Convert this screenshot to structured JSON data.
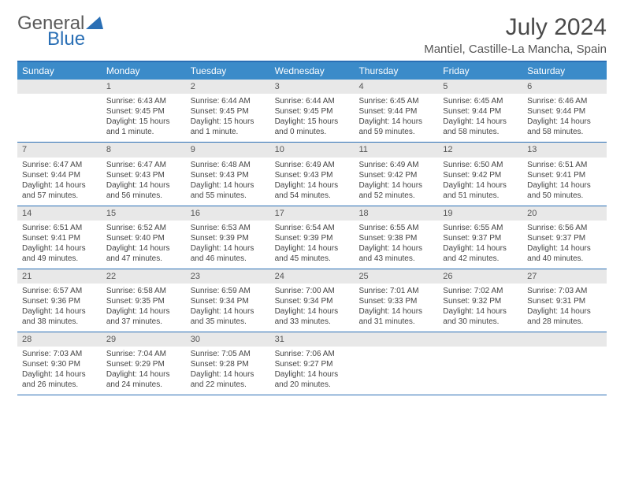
{
  "logo": {
    "word1": "General",
    "word2": "Blue",
    "tri_color": "#2a6fb5"
  },
  "title": "July 2024",
  "location": "Mantiel, Castille-La Mancha, Spain",
  "colors": {
    "header_bar": "#3b8bc9",
    "rule": "#2a6fb5",
    "daynum_bg": "#e8e8e8"
  },
  "dow": [
    "Sunday",
    "Monday",
    "Tuesday",
    "Wednesday",
    "Thursday",
    "Friday",
    "Saturday"
  ],
  "weeks": [
    [
      {
        "n": "",
        "sr": "",
        "ss": "",
        "d1": "",
        "d2": ""
      },
      {
        "n": "1",
        "sr": "Sunrise: 6:43 AM",
        "ss": "Sunset: 9:45 PM",
        "d1": "Daylight: 15 hours",
        "d2": "and 1 minute."
      },
      {
        "n": "2",
        "sr": "Sunrise: 6:44 AM",
        "ss": "Sunset: 9:45 PM",
        "d1": "Daylight: 15 hours",
        "d2": "and 1 minute."
      },
      {
        "n": "3",
        "sr": "Sunrise: 6:44 AM",
        "ss": "Sunset: 9:45 PM",
        "d1": "Daylight: 15 hours",
        "d2": "and 0 minutes."
      },
      {
        "n": "4",
        "sr": "Sunrise: 6:45 AM",
        "ss": "Sunset: 9:44 PM",
        "d1": "Daylight: 14 hours",
        "d2": "and 59 minutes."
      },
      {
        "n": "5",
        "sr": "Sunrise: 6:45 AM",
        "ss": "Sunset: 9:44 PM",
        "d1": "Daylight: 14 hours",
        "d2": "and 58 minutes."
      },
      {
        "n": "6",
        "sr": "Sunrise: 6:46 AM",
        "ss": "Sunset: 9:44 PM",
        "d1": "Daylight: 14 hours",
        "d2": "and 58 minutes."
      }
    ],
    [
      {
        "n": "7",
        "sr": "Sunrise: 6:47 AM",
        "ss": "Sunset: 9:44 PM",
        "d1": "Daylight: 14 hours",
        "d2": "and 57 minutes."
      },
      {
        "n": "8",
        "sr": "Sunrise: 6:47 AM",
        "ss": "Sunset: 9:43 PM",
        "d1": "Daylight: 14 hours",
        "d2": "and 56 minutes."
      },
      {
        "n": "9",
        "sr": "Sunrise: 6:48 AM",
        "ss": "Sunset: 9:43 PM",
        "d1": "Daylight: 14 hours",
        "d2": "and 55 minutes."
      },
      {
        "n": "10",
        "sr": "Sunrise: 6:49 AM",
        "ss": "Sunset: 9:43 PM",
        "d1": "Daylight: 14 hours",
        "d2": "and 54 minutes."
      },
      {
        "n": "11",
        "sr": "Sunrise: 6:49 AM",
        "ss": "Sunset: 9:42 PM",
        "d1": "Daylight: 14 hours",
        "d2": "and 52 minutes."
      },
      {
        "n": "12",
        "sr": "Sunrise: 6:50 AM",
        "ss": "Sunset: 9:42 PM",
        "d1": "Daylight: 14 hours",
        "d2": "and 51 minutes."
      },
      {
        "n": "13",
        "sr": "Sunrise: 6:51 AM",
        "ss": "Sunset: 9:41 PM",
        "d1": "Daylight: 14 hours",
        "d2": "and 50 minutes."
      }
    ],
    [
      {
        "n": "14",
        "sr": "Sunrise: 6:51 AM",
        "ss": "Sunset: 9:41 PM",
        "d1": "Daylight: 14 hours",
        "d2": "and 49 minutes."
      },
      {
        "n": "15",
        "sr": "Sunrise: 6:52 AM",
        "ss": "Sunset: 9:40 PM",
        "d1": "Daylight: 14 hours",
        "d2": "and 47 minutes."
      },
      {
        "n": "16",
        "sr": "Sunrise: 6:53 AM",
        "ss": "Sunset: 9:39 PM",
        "d1": "Daylight: 14 hours",
        "d2": "and 46 minutes."
      },
      {
        "n": "17",
        "sr": "Sunrise: 6:54 AM",
        "ss": "Sunset: 9:39 PM",
        "d1": "Daylight: 14 hours",
        "d2": "and 45 minutes."
      },
      {
        "n": "18",
        "sr": "Sunrise: 6:55 AM",
        "ss": "Sunset: 9:38 PM",
        "d1": "Daylight: 14 hours",
        "d2": "and 43 minutes."
      },
      {
        "n": "19",
        "sr": "Sunrise: 6:55 AM",
        "ss": "Sunset: 9:37 PM",
        "d1": "Daylight: 14 hours",
        "d2": "and 42 minutes."
      },
      {
        "n": "20",
        "sr": "Sunrise: 6:56 AM",
        "ss": "Sunset: 9:37 PM",
        "d1": "Daylight: 14 hours",
        "d2": "and 40 minutes."
      }
    ],
    [
      {
        "n": "21",
        "sr": "Sunrise: 6:57 AM",
        "ss": "Sunset: 9:36 PM",
        "d1": "Daylight: 14 hours",
        "d2": "and 38 minutes."
      },
      {
        "n": "22",
        "sr": "Sunrise: 6:58 AM",
        "ss": "Sunset: 9:35 PM",
        "d1": "Daylight: 14 hours",
        "d2": "and 37 minutes."
      },
      {
        "n": "23",
        "sr": "Sunrise: 6:59 AM",
        "ss": "Sunset: 9:34 PM",
        "d1": "Daylight: 14 hours",
        "d2": "and 35 minutes."
      },
      {
        "n": "24",
        "sr": "Sunrise: 7:00 AM",
        "ss": "Sunset: 9:34 PM",
        "d1": "Daylight: 14 hours",
        "d2": "and 33 minutes."
      },
      {
        "n": "25",
        "sr": "Sunrise: 7:01 AM",
        "ss": "Sunset: 9:33 PM",
        "d1": "Daylight: 14 hours",
        "d2": "and 31 minutes."
      },
      {
        "n": "26",
        "sr": "Sunrise: 7:02 AM",
        "ss": "Sunset: 9:32 PM",
        "d1": "Daylight: 14 hours",
        "d2": "and 30 minutes."
      },
      {
        "n": "27",
        "sr": "Sunrise: 7:03 AM",
        "ss": "Sunset: 9:31 PM",
        "d1": "Daylight: 14 hours",
        "d2": "and 28 minutes."
      }
    ],
    [
      {
        "n": "28",
        "sr": "Sunrise: 7:03 AM",
        "ss": "Sunset: 9:30 PM",
        "d1": "Daylight: 14 hours",
        "d2": "and 26 minutes."
      },
      {
        "n": "29",
        "sr": "Sunrise: 7:04 AM",
        "ss": "Sunset: 9:29 PM",
        "d1": "Daylight: 14 hours",
        "d2": "and 24 minutes."
      },
      {
        "n": "30",
        "sr": "Sunrise: 7:05 AM",
        "ss": "Sunset: 9:28 PM",
        "d1": "Daylight: 14 hours",
        "d2": "and 22 minutes."
      },
      {
        "n": "31",
        "sr": "Sunrise: 7:06 AM",
        "ss": "Sunset: 9:27 PM",
        "d1": "Daylight: 14 hours",
        "d2": "and 20 minutes."
      },
      {
        "n": "",
        "sr": "",
        "ss": "",
        "d1": "",
        "d2": ""
      },
      {
        "n": "",
        "sr": "",
        "ss": "",
        "d1": "",
        "d2": ""
      },
      {
        "n": "",
        "sr": "",
        "ss": "",
        "d1": "",
        "d2": ""
      }
    ]
  ]
}
